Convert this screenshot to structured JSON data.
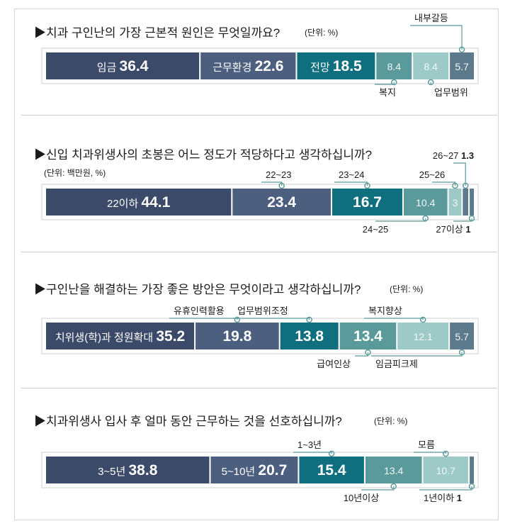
{
  "colors": [
    "#3b4a68",
    "#4d5f7f",
    "#0f6f7e",
    "#5b9a9a",
    "#9dcac6",
    "#5c7a8c"
  ],
  "chart_data": [
    {
      "type": "bar",
      "title": "▶치과 구인난의 가장 근본적 원인은 무엇일까요?",
      "unit": "(단위: %)",
      "segments": [
        {
          "label": "임금",
          "value": 36.4,
          "display": "36.4"
        },
        {
          "label": "근무환경",
          "value": 22.6,
          "display": "22.6"
        },
        {
          "label": "전망",
          "value": 18.5,
          "display": "18.5"
        },
        {
          "label": "복지",
          "value": 8.4,
          "display": "8.4"
        },
        {
          "label": "업무범위",
          "value": 8.4,
          "display": "8.4"
        },
        {
          "label": "내부갈등",
          "value": 5.7,
          "display": "5.7"
        }
      ]
    },
    {
      "type": "bar",
      "title": "▶신입 치과위생사의 초봉은 어느 정도가 적당하다고 생각하십니까?",
      "unit": "(단위: 백만원, %)",
      "segments": [
        {
          "label": "22이하",
          "value": 44.1,
          "display": "44.1"
        },
        {
          "label": "22~23",
          "value": 23.4,
          "display": "23.4"
        },
        {
          "label": "23~24",
          "value": 16.7,
          "display": "16.7"
        },
        {
          "label": "24~25",
          "value": 10.4,
          "display": "10.4"
        },
        {
          "label": "25~26",
          "value": 3,
          "display": "3"
        },
        {
          "label": "26~27",
          "value": 1.3,
          "display": "1.3"
        },
        {
          "label": "27이상",
          "value": 1,
          "display": "1"
        }
      ]
    },
    {
      "type": "bar",
      "title": "▶구인난을 해결하는 가장 좋은 방안은 무엇이라고 생각하십니까?",
      "unit": "(단위: %)",
      "segments": [
        {
          "label": "치위생(학)과 정원확대",
          "value": 35.2,
          "display": "35.2"
        },
        {
          "label": "유휴인력활용",
          "value": 19.8,
          "display": "19.8"
        },
        {
          "label": "업무범위조정",
          "value": 13.8,
          "display": "13.8"
        },
        {
          "label": "급여인상",
          "value": 13.4,
          "display": "13.4"
        },
        {
          "label": "복지향상",
          "value": 12.1,
          "display": "12.1"
        },
        {
          "label": "임금피크제",
          "value": 5.7,
          "display": "5.7"
        }
      ]
    },
    {
      "type": "bar",
      "title": "▶치과위생사 입사 후 얼마 동안 근무하는 것을 선호하십니까?",
      "unit": "(단위: %)",
      "segments": [
        {
          "label": "3~5년",
          "value": 38.8,
          "display": "38.8"
        },
        {
          "label": "5~10년",
          "value": 20.7,
          "display": "20.7"
        },
        {
          "label": "1~3년",
          "value": 15.4,
          "display": "15.4"
        },
        {
          "label": "10년이상",
          "value": 13.4,
          "display": "13.4"
        },
        {
          "label": "모름",
          "value": 10.7,
          "display": "10.7"
        },
        {
          "label": "1년이하",
          "value": 1,
          "display": "1"
        }
      ]
    }
  ]
}
